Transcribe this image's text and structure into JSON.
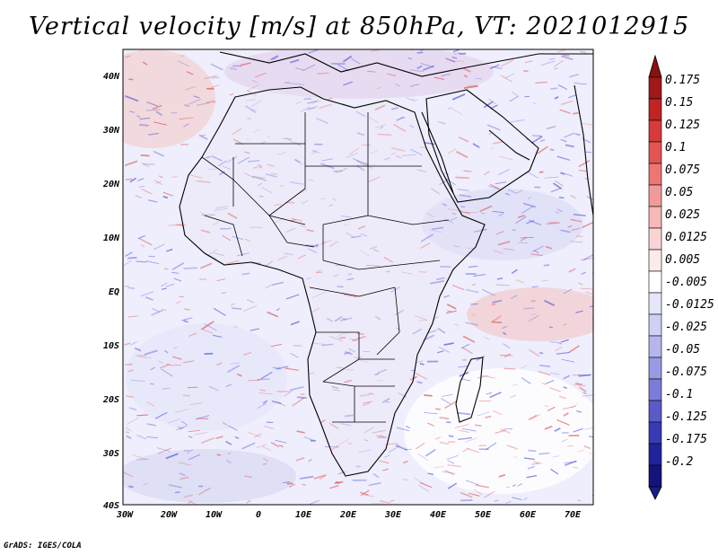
{
  "title": "Vertical velocity [m/s] at 850hPa, VT: 2021012915",
  "credit": "GrADS: IGES/COLA",
  "map": {
    "region": "Africa",
    "lat_range": [
      -40,
      45
    ],
    "lon_range": [
      -30,
      75
    ],
    "lat_ticks": [
      "40N",
      "30N",
      "20N",
      "10N",
      "EQ",
      "10S",
      "20S",
      "30S",
      "40S"
    ],
    "lon_ticks": [
      "30W",
      "20W",
      "10W",
      "0",
      "10E",
      "20E",
      "30E",
      "40E",
      "50E",
      "60E",
      "70E"
    ]
  },
  "colorbar": {
    "levels": [
      "0.175",
      "0.15",
      "0.125",
      "0.1",
      "0.075",
      "0.05",
      "0.025",
      "0.0125",
      "0.005",
      "-0.005",
      "-0.0125",
      "-0.025",
      "-0.05",
      "-0.075",
      "-0.1",
      "-0.125",
      "-0.175",
      "-0.2"
    ],
    "colors": [
      "#a01818",
      "#c02424",
      "#d63a3a",
      "#e45454",
      "#ec7676",
      "#f29a9a",
      "#f6b8b8",
      "#fad4d4",
      "#fdeaea",
      "#ffffff",
      "#e6e6fa",
      "#d0d0f6",
      "#b6b6ee",
      "#9a9ae4",
      "#7c7cd8",
      "#5a5ac8",
      "#3a3ab4",
      "#22229c",
      "#14147e"
    ],
    "top_arrow_color": "#8c1010",
    "bottom_arrow_color": "#1a1a8a"
  },
  "palette": {
    "ocean": "#f2f2ff",
    "positive": "#e05050",
    "negative": "#5050d8",
    "border": "#000000"
  }
}
